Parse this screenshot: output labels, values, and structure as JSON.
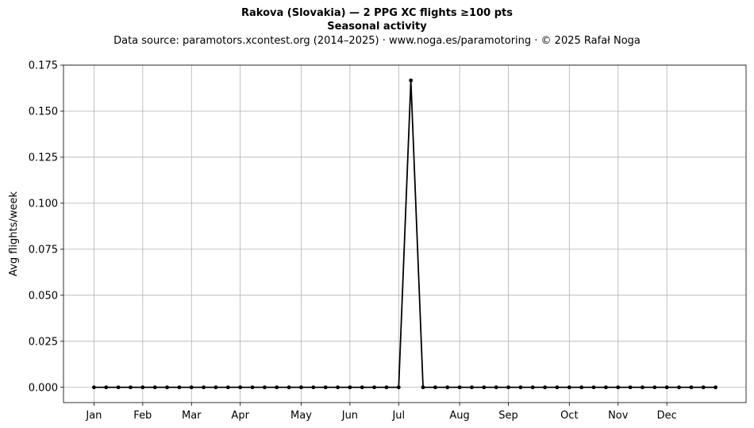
{
  "header": {
    "title": "Rakova (Slovakia)  —  2 PPG XC flights ≥100 pts",
    "subtitle": "Seasonal activity",
    "source": "Data source: paramotors.xcontest.org (2014–2025)  ·  www.noga.es/paramotoring  ·  © 2025 Rafał Noga"
  },
  "chart_data": {
    "type": "line",
    "title": "Rakova (Slovakia)  —  2 PPG XC flights ≥100 pts",
    "subtitle": "Seasonal activity",
    "xlabel": "",
    "ylabel": "Avg flights/week",
    "x_unit": "week of year",
    "xlim": [
      -1.5,
      54.5
    ],
    "ylim": [
      -0.0083,
      0.175
    ],
    "yticks": [
      0.0,
      0.025,
      0.05,
      0.075,
      0.1,
      0.125,
      0.15,
      0.175
    ],
    "ytick_labels": [
      "0.000",
      "0.025",
      "0.050",
      "0.075",
      "0.100",
      "0.125",
      "0.150",
      "0.175"
    ],
    "month_ticks": [
      {
        "label": "Jan",
        "week": 1
      },
      {
        "label": "Feb",
        "week": 5
      },
      {
        "label": "Mar",
        "week": 9
      },
      {
        "label": "Apr",
        "week": 13
      },
      {
        "label": "May",
        "week": 18
      },
      {
        "label": "Jun",
        "week": 22
      },
      {
        "label": "Jul",
        "week": 26
      },
      {
        "label": "Aug",
        "week": 31
      },
      {
        "label": "Sep",
        "week": 35
      },
      {
        "label": "Oct",
        "week": 40
      },
      {
        "label": "Nov",
        "week": 44
      },
      {
        "label": "Dec",
        "week": 48
      }
    ],
    "grid": true,
    "legend": "none",
    "line_color": "#000000",
    "grid_color": "#b0b0b0",
    "series": [
      {
        "x": [
          1,
          2,
          3,
          4,
          5,
          6,
          7,
          8,
          9,
          10,
          11,
          12,
          13,
          14,
          15,
          16,
          17,
          18,
          19,
          20,
          21,
          22,
          23,
          24,
          25,
          26,
          27,
          28,
          29,
          30,
          31,
          32,
          33,
          34,
          35,
          36,
          37,
          38,
          39,
          40,
          41,
          42,
          43,
          44,
          45,
          46,
          47,
          48,
          49,
          50,
          51,
          52
        ],
        "values": [
          0,
          0,
          0,
          0,
          0,
          0,
          0,
          0,
          0,
          0,
          0,
          0,
          0,
          0,
          0,
          0,
          0,
          0,
          0,
          0,
          0,
          0,
          0,
          0,
          0,
          0,
          0.1667,
          0,
          0,
          0,
          0,
          0,
          0,
          0,
          0,
          0,
          0,
          0,
          0,
          0,
          0,
          0,
          0,
          0,
          0,
          0,
          0,
          0,
          0,
          0,
          0,
          0
        ]
      }
    ]
  }
}
